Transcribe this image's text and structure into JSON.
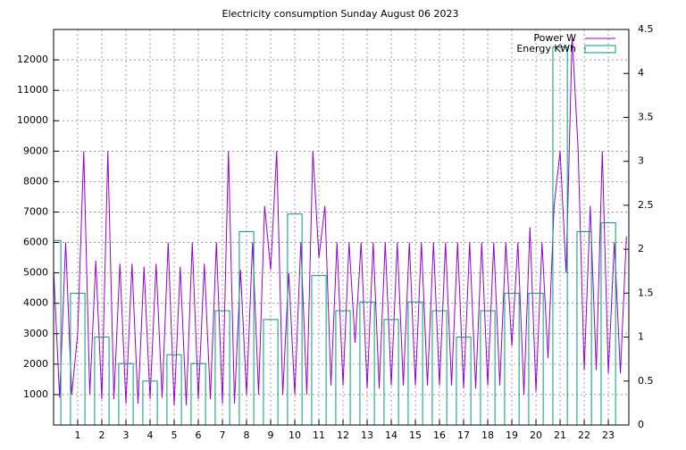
{
  "chart_data": {
    "type": "line",
    "title": "Electricity consumption Sunday August 06 2023",
    "x": [
      0,
      0.25,
      0.5,
      0.75,
      1,
      1.25,
      1.5,
      1.75,
      2,
      2.25,
      2.5,
      2.75,
      3,
      3.25,
      3.5,
      3.75,
      4,
      4.25,
      4.5,
      4.75,
      5,
      5.25,
      5.5,
      5.75,
      6,
      6.25,
      6.5,
      6.75,
      7,
      7.25,
      7.5,
      7.75,
      8,
      8.25,
      8.5,
      8.75,
      9,
      9.25,
      9.5,
      9.75,
      10,
      10.25,
      10.5,
      10.75,
      11,
      11.25,
      11.5,
      11.75,
      12,
      12.25,
      12.5,
      12.75,
      13,
      13.25,
      13.5,
      13.75,
      14,
      14.25,
      14.5,
      14.75,
      15,
      15.25,
      15.5,
      15.75,
      16,
      16.25,
      16.5,
      16.75,
      17,
      17.25,
      17.5,
      17.75,
      18,
      18.25,
      18.5,
      18.75,
      19,
      19.25,
      19.5,
      19.75,
      20,
      20.25,
      20.5,
      20.75,
      21,
      21.25,
      21.5,
      21.75,
      22,
      22.25,
      22.5,
      22.75,
      23,
      23.25,
      23.5,
      23.75
    ],
    "series": [
      {
        "name": "Power W",
        "color": "#9400d3",
        "values": [
          5100,
          900,
          6000,
          1000,
          3000,
          9000,
          1000,
          5400,
          850,
          9000,
          850,
          5300,
          700,
          5300,
          700,
          5200,
          850,
          5300,
          900,
          6000,
          650,
          5200,
          650,
          6000,
          850,
          5300,
          850,
          6000,
          700,
          9000,
          700,
          5100,
          1000,
          6000,
          1000,
          7200,
          5100,
          9000,
          1000,
          5000,
          1000,
          6000,
          1000,
          9000,
          5500,
          7200,
          1300,
          6000,
          1300,
          6000,
          2700,
          6000,
          1200,
          6000,
          1200,
          6000,
          1300,
          6000,
          1300,
          6000,
          1300,
          6000,
          1300,
          6000,
          1300,
          6000,
          1300,
          6000,
          1200,
          6000,
          1200,
          6000,
          1300,
          6000,
          1300,
          6000,
          2600,
          6000,
          1000,
          6500,
          1100,
          6000,
          2200,
          7200,
          9000,
          5000,
          12800,
          9000,
          1800,
          7200,
          1800,
          9000,
          1700,
          6000,
          1700,
          6200
        ]
      },
      {
        "name": "Energy KWh",
        "color": "#009e73",
        "type": "boxes",
        "axis": "y2",
        "x": [
          0,
          1,
          2,
          3,
          4,
          5,
          6,
          7,
          8,
          9,
          10,
          11,
          12,
          13,
          14,
          15,
          16,
          17,
          18,
          19,
          20,
          21,
          22,
          23
        ],
        "values": [
          2.1,
          1.5,
          1.0,
          0.7,
          0.5,
          0.8,
          0.7,
          1.3,
          2.2,
          1.2,
          2.4,
          1.7,
          1.3,
          1.4,
          1.2,
          1.4,
          1.3,
          1.0,
          1.3,
          1.5,
          1.5,
          4.3,
          2.2,
          2.3
        ]
      }
    ],
    "xlim": [
      0,
      23.85
    ],
    "xticks": [
      1,
      2,
      3,
      4,
      5,
      6,
      7,
      8,
      9,
      10,
      11,
      12,
      13,
      14,
      15,
      16,
      17,
      18,
      19,
      20,
      21,
      22,
      23
    ],
    "ylim": [
      0,
      13000
    ],
    "yticks": [
      1000,
      2000,
      3000,
      4000,
      5000,
      6000,
      7000,
      8000,
      9000,
      10000,
      11000,
      12000
    ],
    "y2lim": [
      0,
      4.5
    ],
    "y2ticks": [
      0,
      0.5,
      1,
      1.5,
      2,
      2.5,
      3,
      3.5,
      4,
      4.5
    ],
    "grid": true,
    "legend": "top-right"
  }
}
